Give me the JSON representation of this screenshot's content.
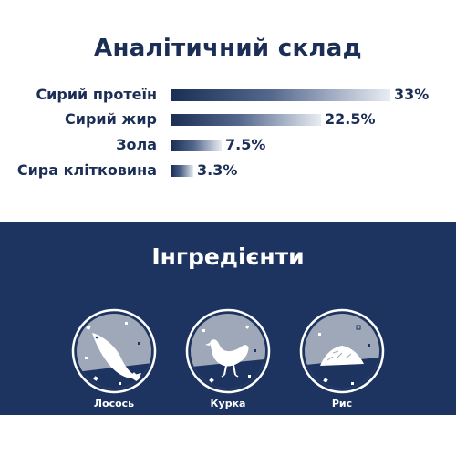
{
  "analysis": {
    "title": "Аналітичний склад",
    "rows": [
      {
        "label": "Сирий протеїн",
        "value": "33%",
        "level": 33
      },
      {
        "label": "Сирий жир",
        "value": "22.5%",
        "level": 22.5
      },
      {
        "label": "Зола",
        "value": "7.5%",
        "level": 7.5
      },
      {
        "label": "Сира клітковина",
        "value": "3.3%",
        "level": 3.3
      }
    ]
  },
  "ingredients": {
    "title": "Інгредієнти",
    "items": [
      {
        "label": "Лосось",
        "icon": "salmon-icon"
      },
      {
        "label": "Курка",
        "icon": "chicken-icon"
      },
      {
        "label": "Рис",
        "icon": "rice-icon"
      }
    ]
  },
  "colors": {
    "navy": "#1d3461",
    "text": "#1b2e55",
    "circle": "#9ea8b8",
    "white": "#ffffff"
  }
}
